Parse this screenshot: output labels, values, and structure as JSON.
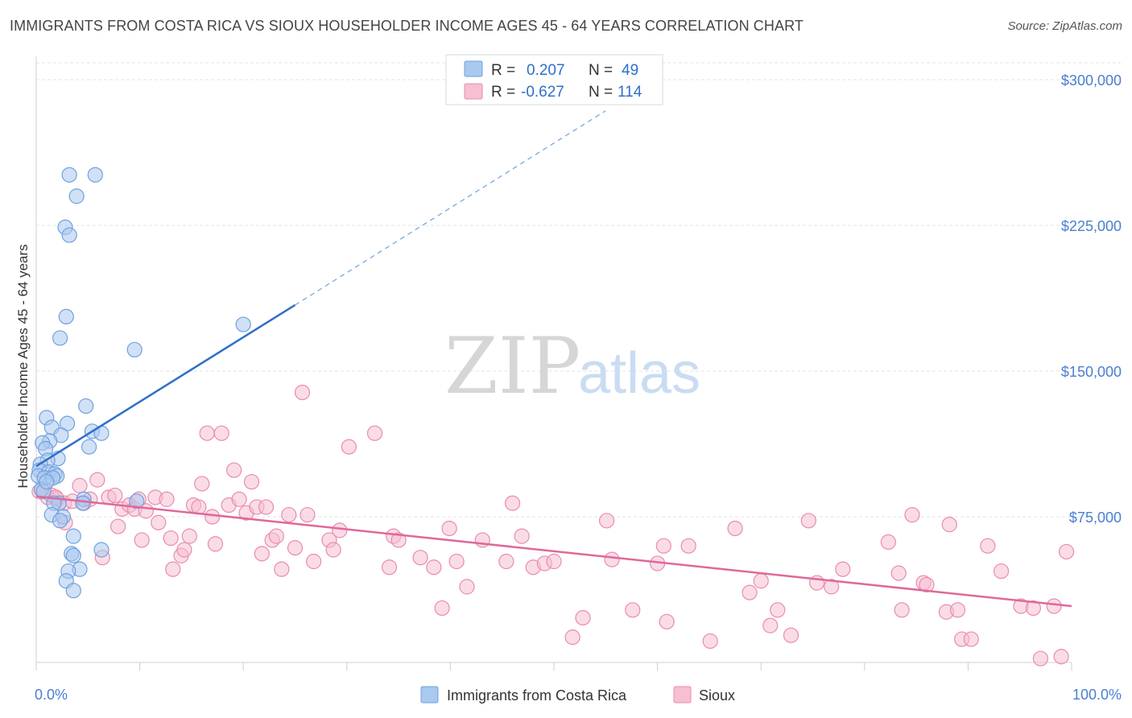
{
  "title": "IMMIGRANTS FROM COSTA RICA VS SIOUX HOUSEHOLDER INCOME AGES 45 - 64 YEARS CORRELATION CHART",
  "source": "Source: ZipAtlas.com",
  "watermark": {
    "zip": "ZIP",
    "atlas": "atlas"
  },
  "colors": {
    "blue_fill": "#a9c9ef",
    "blue_stroke": "#6fa1de",
    "blue_line": "#2f6fc9",
    "pink_fill": "#f6bfd2",
    "pink_stroke": "#e98bad",
    "pink_line": "#e0689a",
    "grid": "#e3e3e3",
    "axis_text": "#4a7fd0"
  },
  "legend": {
    "rows": [
      {
        "r_label": "R =",
        "r_value": "0.207",
        "n_label": "N =",
        "n_value": "49"
      },
      {
        "r_label": "R =",
        "r_value": "-0.627",
        "n_label": "N =",
        "n_value": "114"
      }
    ]
  },
  "chart_data": {
    "type": "scatter",
    "title": "IMMIGRANTS FROM COSTA RICA VS SIOUX HOUSEHOLDER INCOME AGES 45 - 64 YEARS CORRELATION CHART",
    "xlabel": "",
    "ylabel": "Householder Income Ages 45 - 64 years",
    "xlim": [
      0,
      100
    ],
    "ylim": [
      0,
      312000
    ],
    "x_tick_labels": [
      "0.0%",
      "100.0%"
    ],
    "y_ticks": [
      75000,
      150000,
      225000,
      300000
    ],
    "y_tick_labels": [
      "$75,000",
      "$150,000",
      "$225,000",
      "$300,000"
    ],
    "grid": true,
    "legend_position": "top-center",
    "series": [
      {
        "name": "Immigrants from Costa Rica",
        "color": "#6fa1de",
        "trend": {
          "x": [
            0,
            25
          ],
          "y": [
            101000,
            184000
          ],
          "dashed_to": {
            "x": 55,
            "y": 284000
          }
        },
        "points": [
          [
            3.2,
            251000
          ],
          [
            5.7,
            251000
          ],
          [
            3.9,
            240000
          ],
          [
            2.8,
            224000
          ],
          [
            3.2,
            220000
          ],
          [
            2.9,
            178000
          ],
          [
            2.3,
            167000
          ],
          [
            9.5,
            161000
          ],
          [
            20.0,
            174000
          ],
          [
            4.8,
            132000
          ],
          [
            1.0,
            126000
          ],
          [
            3.0,
            123000
          ],
          [
            1.5,
            121000
          ],
          [
            2.4,
            117000
          ],
          [
            5.4,
            119000
          ],
          [
            6.3,
            118000
          ],
          [
            1.3,
            114000
          ],
          [
            0.6,
            113000
          ],
          [
            5.1,
            111000
          ],
          [
            0.9,
            110000
          ],
          [
            2.1,
            105000
          ],
          [
            1.1,
            104000
          ],
          [
            0.4,
            102000
          ],
          [
            0.3,
            99000
          ],
          [
            1.2,
            98000
          ],
          [
            1.8,
            97000
          ],
          [
            2.0,
            96000
          ],
          [
            0.2,
            96000
          ],
          [
            0.8,
            95000
          ],
          [
            1.6,
            95000
          ],
          [
            0.5,
            89000
          ],
          [
            4.6,
            84000
          ],
          [
            9.7,
            83000
          ],
          [
            2.2,
            82000
          ],
          [
            1.7,
            82000
          ],
          [
            4.5,
            82000
          ],
          [
            1.5,
            76000
          ],
          [
            2.6,
            75000
          ],
          [
            2.3,
            73000
          ],
          [
            3.6,
            65000
          ],
          [
            6.3,
            58000
          ],
          [
            3.4,
            56000
          ],
          [
            3.6,
            55000
          ],
          [
            4.2,
            48000
          ],
          [
            3.1,
            47000
          ],
          [
            2.9,
            42000
          ],
          [
            3.6,
            37000
          ],
          [
            0.7,
            88000
          ],
          [
            1.0,
            93000
          ]
        ]
      },
      {
        "name": "Sioux",
        "color": "#e98bad",
        "trend": {
          "x": [
            0,
            100
          ],
          "y": [
            85500,
            29000
          ]
        },
        "points": [
          [
            0.8,
            89000
          ],
          [
            1.1,
            85000
          ],
          [
            1.5,
            86000
          ],
          [
            2.0,
            84000
          ],
          [
            2.7,
            82000
          ],
          [
            2.8,
            72000
          ],
          [
            3.5,
            83000
          ],
          [
            4.2,
            91000
          ],
          [
            4.6,
            82000
          ],
          [
            5.2,
            84000
          ],
          [
            5.9,
            94000
          ],
          [
            6.4,
            54000
          ],
          [
            7.0,
            85000
          ],
          [
            7.6,
            86000
          ],
          [
            7.9,
            70000
          ],
          [
            8.3,
            79000
          ],
          [
            9.0,
            81000
          ],
          [
            9.5,
            79000
          ],
          [
            9.9,
            84000
          ],
          [
            10.2,
            63000
          ],
          [
            10.6,
            78000
          ],
          [
            11.5,
            85000
          ],
          [
            11.8,
            72000
          ],
          [
            12.6,
            84000
          ],
          [
            13.0,
            64000
          ],
          [
            13.2,
            48000
          ],
          [
            14.0,
            55000
          ],
          [
            14.3,
            58000
          ],
          [
            14.8,
            65000
          ],
          [
            15.2,
            81000
          ],
          [
            15.7,
            80000
          ],
          [
            16.0,
            92000
          ],
          [
            16.5,
            118000
          ],
          [
            17.0,
            75000
          ],
          [
            17.3,
            61000
          ],
          [
            17.9,
            118000
          ],
          [
            18.6,
            81000
          ],
          [
            19.1,
            99000
          ],
          [
            19.6,
            84000
          ],
          [
            20.3,
            77000
          ],
          [
            20.8,
            93000
          ],
          [
            21.3,
            80000
          ],
          [
            21.8,
            56000
          ],
          [
            22.2,
            80000
          ],
          [
            22.8,
            63000
          ],
          [
            23.2,
            65000
          ],
          [
            23.7,
            48000
          ],
          [
            24.4,
            76000
          ],
          [
            25.0,
            59000
          ],
          [
            25.7,
            139000
          ],
          [
            26.2,
            76000
          ],
          [
            26.8,
            52000
          ],
          [
            28.3,
            63000
          ],
          [
            28.7,
            58000
          ],
          [
            29.3,
            68000
          ],
          [
            30.2,
            111000
          ],
          [
            32.7,
            118000
          ],
          [
            34.1,
            49000
          ],
          [
            34.5,
            65000
          ],
          [
            35.0,
            63000
          ],
          [
            37.1,
            54000
          ],
          [
            38.4,
            49000
          ],
          [
            39.2,
            28000
          ],
          [
            39.9,
            69000
          ],
          [
            40.6,
            52000
          ],
          [
            41.6,
            39000
          ],
          [
            43.1,
            63000
          ],
          [
            45.4,
            52000
          ],
          [
            46.0,
            82000
          ],
          [
            46.9,
            65000
          ],
          [
            48.0,
            49000
          ],
          [
            49.1,
            51000
          ],
          [
            50.0,
            52000
          ],
          [
            51.8,
            13000
          ],
          [
            52.8,
            23000
          ],
          [
            55.1,
            73000
          ],
          [
            55.6,
            53000
          ],
          [
            57.6,
            27000
          ],
          [
            60.0,
            51000
          ],
          [
            60.6,
            60000
          ],
          [
            60.9,
            21000
          ],
          [
            63.0,
            60000
          ],
          [
            65.1,
            11000
          ],
          [
            67.5,
            69000
          ],
          [
            68.9,
            36000
          ],
          [
            70.0,
            42000
          ],
          [
            70.9,
            19000
          ],
          [
            71.6,
            27000
          ],
          [
            72.9,
            14000
          ],
          [
            74.6,
            73000
          ],
          [
            75.4,
            41000
          ],
          [
            76.8,
            39000
          ],
          [
            77.9,
            48000
          ],
          [
            82.3,
            62000
          ],
          [
            83.3,
            46000
          ],
          [
            83.6,
            27000
          ],
          [
            84.6,
            76000
          ],
          [
            85.7,
            41000
          ],
          [
            86.0,
            40000
          ],
          [
            87.9,
            26000
          ],
          [
            88.2,
            71000
          ],
          [
            89.0,
            27000
          ],
          [
            89.4,
            12000
          ],
          [
            90.3,
            12000
          ],
          [
            91.9,
            60000
          ],
          [
            93.2,
            47000
          ],
          [
            95.1,
            29000
          ],
          [
            96.3,
            28000
          ],
          [
            97.0,
            2000
          ],
          [
            98.3,
            29000
          ],
          [
            99.0,
            3000
          ],
          [
            99.5,
            57000
          ],
          [
            0.3,
            88000
          ],
          [
            1.9,
            85000
          ]
        ]
      }
    ]
  },
  "bottom_legend": [
    {
      "label": "Immigrants from Costa Rica"
    },
    {
      "label": "Sioux"
    }
  ]
}
